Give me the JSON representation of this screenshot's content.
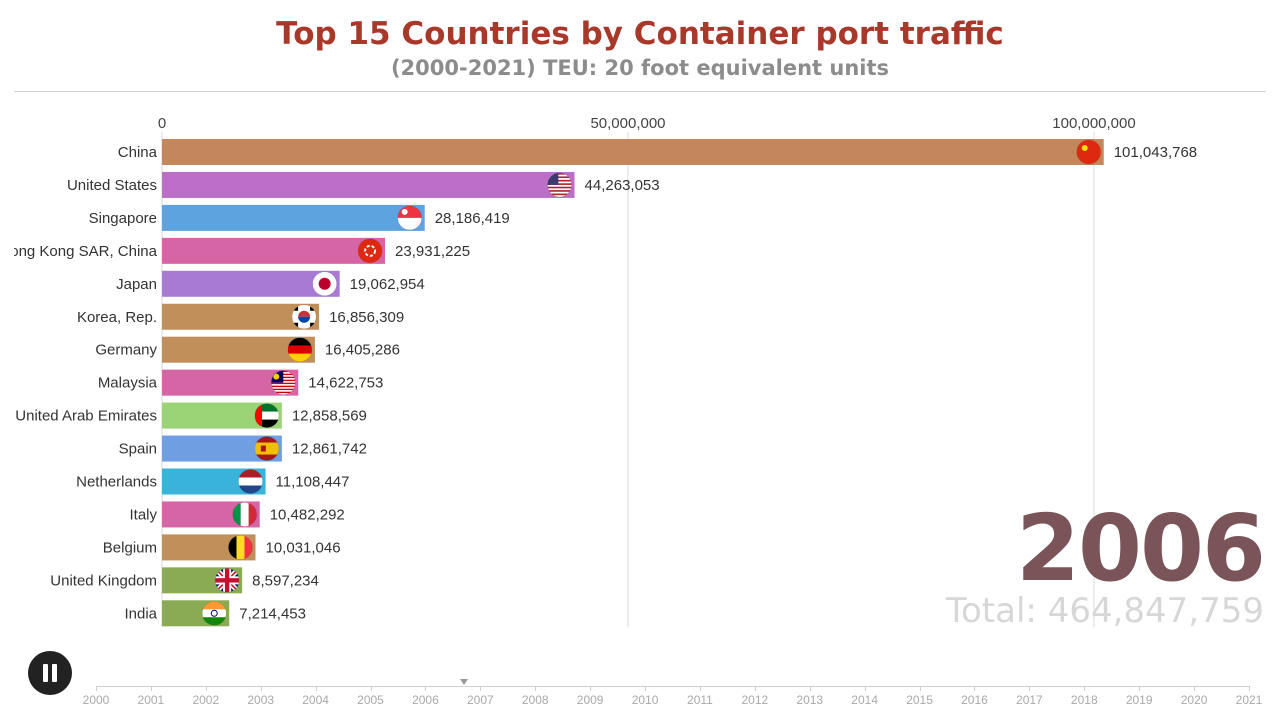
{
  "title": "Top 15 Countries by Container port traffic",
  "subtitle": "(2000-2021) TEU: 20 foot equivalent units",
  "current_year": "2006",
  "total_label": "Total:",
  "total_value": "464,847,759",
  "colors": {
    "title": "#a8382a",
    "subtitle": "#8c8c8c",
    "year": "#7a5458"
  },
  "timeline": {
    "years": [
      "2000",
      "2001",
      "2002",
      "2003",
      "2004",
      "2005",
      "2006",
      "2007",
      "2008",
      "2009",
      "2010",
      "2011",
      "2012",
      "2013",
      "2014",
      "2015",
      "2016",
      "2017",
      "2018",
      "2019",
      "2020",
      "2021"
    ],
    "position": 2006.7
  },
  "chart_data": {
    "type": "bar",
    "orientation": "horizontal",
    "title": "Top 15 Countries by Container port traffic",
    "subtitle": "(2000-2021) TEU: 20 foot equivalent units",
    "xlim": [
      0,
      112000000
    ],
    "x_ticks": [
      0,
      50000000,
      100000000
    ],
    "x_tick_labels": [
      "0",
      "50,000,000",
      "100,000,000"
    ],
    "grid": true,
    "categories": [
      "China",
      "United States",
      "Singapore",
      "Hong Kong SAR, China",
      "Japan",
      "Korea, Rep.",
      "Germany",
      "Malaysia",
      "United Arab Emirates",
      "Spain",
      "Netherlands",
      "Italy",
      "Belgium",
      "United Kingdom",
      "India"
    ],
    "values": [
      101043768,
      44263053,
      28186419,
      23931225,
      19062954,
      16856309,
      16405286,
      14622753,
      12858569,
      12861742,
      11108447,
      10482292,
      10031046,
      8597234,
      7214453
    ],
    "value_labels": [
      "101,043,768",
      "44,263,053",
      "28,186,419",
      "23,931,225",
      "19,062,954",
      "16,856,309",
      "16,405,286",
      "14,622,753",
      "12,858,569",
      "12,861,742",
      "11,108,447",
      "10,482,292",
      "10,031,046",
      "8,597,234",
      "7,214,453"
    ],
    "bar_colors": [
      "#c4875c",
      "#bb6fc7",
      "#5ca3e0",
      "#d665a5",
      "#a97ad3",
      "#c18f5a",
      "#c18f5a",
      "#d665a5",
      "#9bd477",
      "#6f9ee3",
      "#39b3da",
      "#d665a5",
      "#c18f5a",
      "#8aab54",
      "#8aab54"
    ],
    "flags": [
      "china-flag",
      "usa-flag",
      "singapore-flag",
      "hongkong-flag",
      "japan-flag",
      "korea-flag",
      "germany-flag",
      "malaysia-flag",
      "uae-flag",
      "spain-flag",
      "netherlands-flag",
      "italy-flag",
      "belgium-flag",
      "uk-flag",
      "india-flag"
    ]
  }
}
